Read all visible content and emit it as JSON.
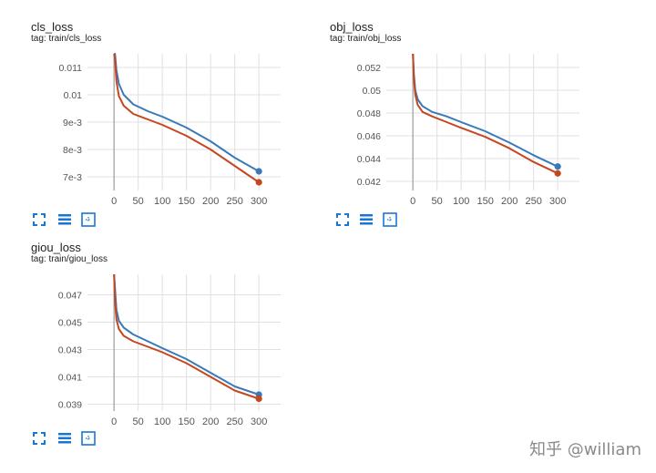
{
  "colors": {
    "series_blue": "#3a7ab8",
    "series_orange": "#c4471f",
    "grid": "#e0e0e0",
    "axis": "#9e9e9e",
    "tick_text": "#555555",
    "tool_icon": "#1976d2"
  },
  "toolbar": {
    "icons": [
      "expand-icon",
      "data-table-icon",
      "fit-domain-icon"
    ]
  },
  "watermark": {
    "text": "知乎 @william"
  },
  "chart_data": [
    {
      "type": "line",
      "title": "cls_loss",
      "subtitle": "tag: train/cls_loss",
      "xlabel": "",
      "ylabel": "",
      "x_ticks": [
        0,
        50,
        100,
        150,
        200,
        250,
        300
      ],
      "x_tick_labels": [
        "0",
        "50",
        "100",
        "150",
        "200",
        "250",
        "300"
      ],
      "y_ticks": [
        0.007,
        0.008,
        0.009,
        0.01,
        0.011
      ],
      "y_tick_labels": [
        "7e-3",
        "8e-3",
        "9e-3",
        "0.01",
        "0.011"
      ],
      "xlim": [
        -55,
        345
      ],
      "ylim": [
        0.0065,
        0.0115
      ],
      "grid": true,
      "series": [
        {
          "color": "#3a7ab8",
          "x": [
            0,
            2,
            5,
            10,
            20,
            40,
            70,
            100,
            150,
            200,
            250,
            300
          ],
          "values": [
            0.0125,
            0.0115,
            0.0109,
            0.0104,
            0.01,
            0.00965,
            0.0094,
            0.0092,
            0.0088,
            0.0083,
            0.0077,
            0.0072
          ]
        },
        {
          "color": "#c4471f",
          "x": [
            0,
            2,
            5,
            10,
            20,
            40,
            70,
            100,
            150,
            200,
            250,
            300
          ],
          "values": [
            0.0125,
            0.0113,
            0.0105,
            0.00995,
            0.0096,
            0.0093,
            0.0091,
            0.0089,
            0.0085,
            0.008,
            0.0074,
            0.0068
          ]
        }
      ]
    },
    {
      "type": "line",
      "title": "obj_loss",
      "subtitle": "tag: train/obj_loss",
      "xlabel": "",
      "ylabel": "",
      "x_ticks": [
        0,
        50,
        100,
        150,
        200,
        250,
        300
      ],
      "x_tick_labels": [
        "0",
        "50",
        "100",
        "150",
        "200",
        "250",
        "300"
      ],
      "y_ticks": [
        0.042,
        0.044,
        0.046,
        0.048,
        0.05,
        0.052
      ],
      "y_tick_labels": [
        "0.042",
        "0.044",
        "0.046",
        "0.048",
        "0.05",
        "0.052"
      ],
      "xlim": [
        -55,
        345
      ],
      "ylim": [
        0.0412,
        0.0532
      ],
      "grid": true,
      "series": [
        {
          "color": "#3a7ab8",
          "x": [
            0,
            2,
            5,
            10,
            20,
            40,
            70,
            100,
            150,
            200,
            250,
            300
          ],
          "values": [
            0.054,
            0.0515,
            0.05,
            0.0492,
            0.0486,
            0.0481,
            0.0477,
            0.0472,
            0.0464,
            0.0454,
            0.0443,
            0.0433
          ]
        },
        {
          "color": "#c4471f",
          "x": [
            0,
            2,
            5,
            10,
            20,
            40,
            70,
            100,
            150,
            200,
            250,
            300
          ],
          "values": [
            0.054,
            0.051,
            0.0496,
            0.0487,
            0.0481,
            0.0477,
            0.0472,
            0.0467,
            0.0459,
            0.0449,
            0.0437,
            0.0427
          ]
        }
      ]
    },
    {
      "type": "line",
      "title": "giou_loss",
      "subtitle": "tag: train/giou_loss",
      "xlabel": "",
      "ylabel": "",
      "x_ticks": [
        0,
        50,
        100,
        150,
        200,
        250,
        300
      ],
      "x_tick_labels": [
        "0",
        "50",
        "100",
        "150",
        "200",
        "250",
        "300"
      ],
      "y_ticks": [
        0.039,
        0.041,
        0.043,
        0.045,
        0.047
      ],
      "y_tick_labels": [
        "0.039",
        "0.041",
        "0.043",
        "0.045",
        "0.047"
      ],
      "xlim": [
        -55,
        345
      ],
      "ylim": [
        0.0385,
        0.0485
      ],
      "grid": true,
      "series": [
        {
          "color": "#3a7ab8",
          "x": [
            0,
            2,
            5,
            10,
            20,
            40,
            70,
            100,
            150,
            200,
            250,
            300
          ],
          "values": [
            0.05,
            0.0475,
            0.0459,
            0.0451,
            0.0446,
            0.0441,
            0.0436,
            0.0431,
            0.0423,
            0.0413,
            0.0403,
            0.0397
          ]
        },
        {
          "color": "#c4471f",
          "x": [
            0,
            2,
            5,
            10,
            20,
            40,
            70,
            100,
            150,
            200,
            250,
            300
          ],
          "values": [
            0.05,
            0.0465,
            0.0452,
            0.0445,
            0.044,
            0.0436,
            0.0432,
            0.0428,
            0.042,
            0.041,
            0.04,
            0.0394
          ]
        }
      ]
    }
  ]
}
